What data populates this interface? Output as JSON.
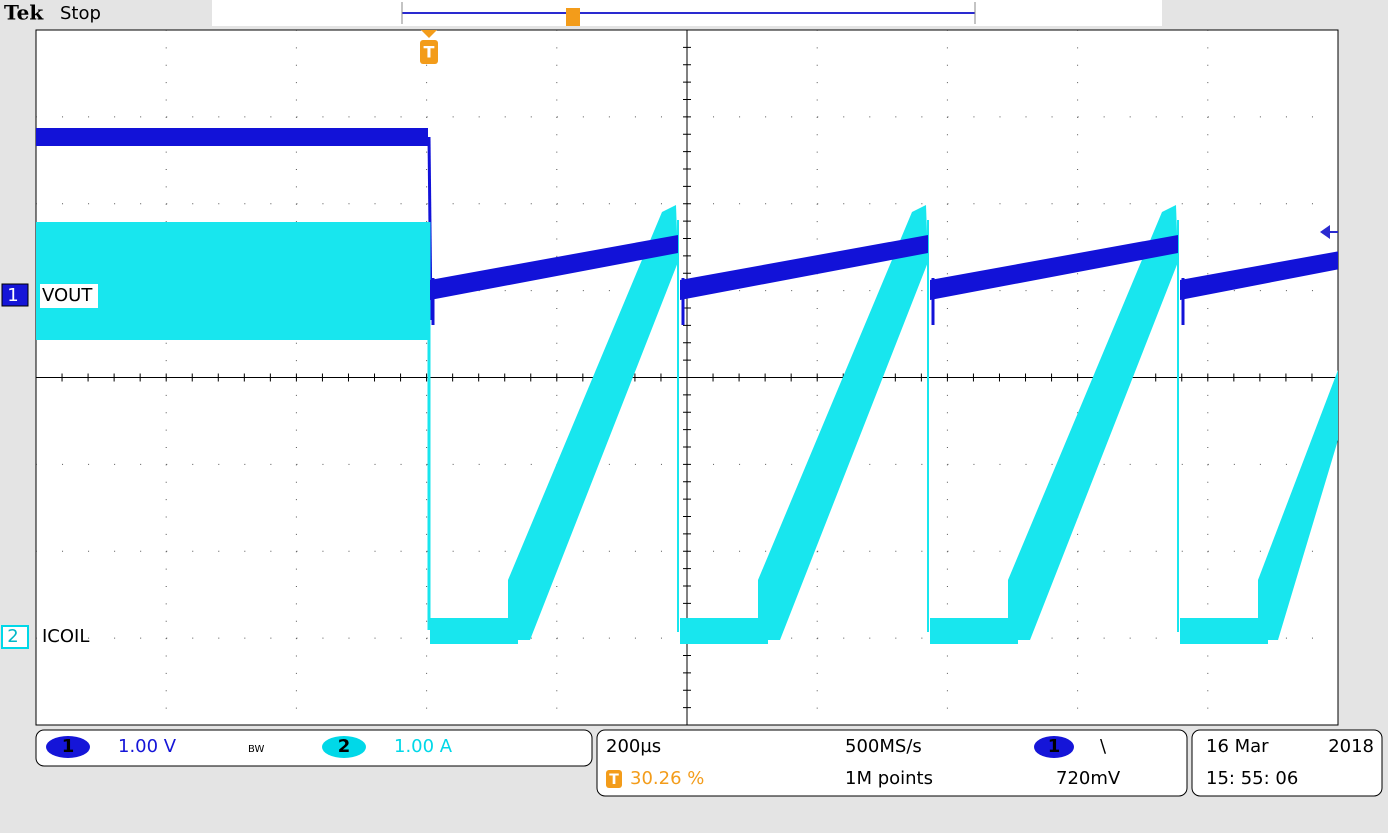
{
  "header": {
    "brand": "Tek",
    "status": "Stop"
  },
  "channels": [
    {
      "number": "1",
      "label": "VOUT",
      "scale": "1.00 V"
    },
    {
      "number": "2",
      "label": "ICOIL",
      "scale": "1.00 A"
    }
  ],
  "bandwidth_limit": "BW",
  "timebase": {
    "scale": "200µs",
    "trigger_position": "30.26 %",
    "sample_rate": "500MS/s",
    "record_length": "1M points"
  },
  "trigger": {
    "marker": "T",
    "source": "1",
    "slope": "\\",
    "level": "720mV"
  },
  "date": {
    "day_month": "16 Mar",
    "year": "2018",
    "time": "15: 55: 06"
  }
}
